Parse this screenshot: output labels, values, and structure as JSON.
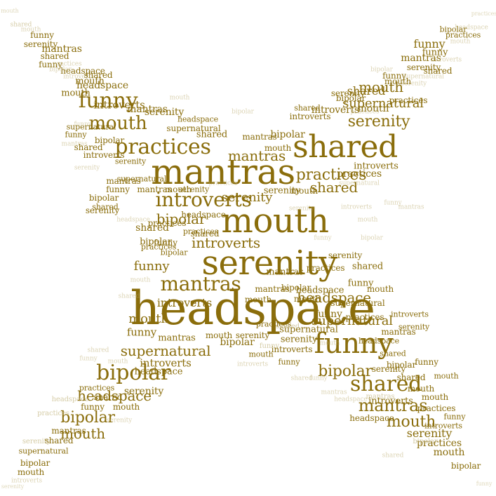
{
  "word_cloud": {
    "shape": "four-pointed-star",
    "color": "#8a6d0b",
    "pale_color": "#b9a96a",
    "background": "#ffffff",
    "words": {
      "headspace": "headspace",
      "serenity": "serenity",
      "mouth": "mouth",
      "mantras": "mantras",
      "shared": "shared",
      "funny": "funny",
      "practices": "practices",
      "introverts": "introverts",
      "bipolar": "bipolar",
      "supernatural": "supernatural"
    }
  }
}
